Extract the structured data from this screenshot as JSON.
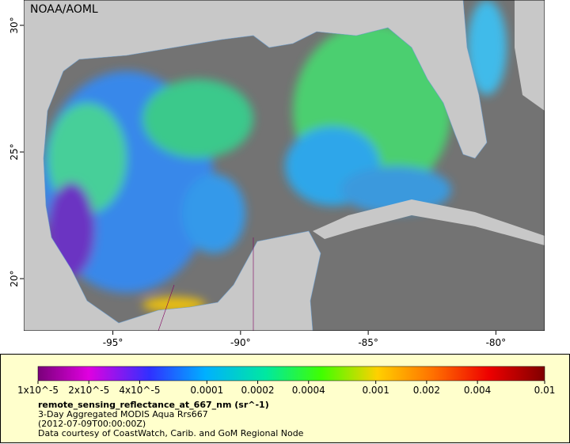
{
  "map": {
    "label": "NOAA/AOML",
    "xlim": [
      -98.49,
      -78.09
    ],
    "ylim": [
      17.94,
      31
    ],
    "xticks": [
      {
        "value": -95,
        "label": "-95°"
      },
      {
        "value": -90,
        "label": "-90°"
      },
      {
        "value": -85,
        "label": "-85°"
      },
      {
        "value": -80,
        "label": "-80°"
      }
    ],
    "yticks": [
      {
        "value": 20,
        "label": "20°"
      },
      {
        "value": 25,
        "label": "25°"
      },
      {
        "value": 30,
        "label": "30°"
      }
    ]
  },
  "colorbar": {
    "scale": "log",
    "range": [
      1e-05,
      0.01
    ],
    "ticks": [
      {
        "value": 1e-05,
        "label": "1x10^-5"
      },
      {
        "value": 2e-05,
        "label": "2x10^-5"
      },
      {
        "value": 4e-05,
        "label": "4x10^-5"
      },
      0.0001,
      0.0002,
      0.0004,
      0.001,
      0.002,
      0.004,
      0.01
    ]
  },
  "legend": {
    "title": "remote_sensing_reflectance_at_667_nm (sr^-1)",
    "lines": [
      "3-Day Aggregated MODIS Aqua Rrs667",
      "(2012-07-09T00:00:00Z)",
      "Data courtesy of CoastWatch, Carib. and GoM Regional Node"
    ]
  }
}
